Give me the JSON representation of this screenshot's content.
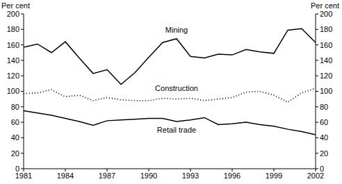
{
  "chart_data": {
    "type": "line",
    "y_label": "Per cent",
    "y2_label": "Per cent",
    "x": [
      1981,
      1982,
      1983,
      1984,
      1985,
      1986,
      1987,
      1988,
      1989,
      1990,
      1991,
      1992,
      1993,
      1994,
      1995,
      1996,
      1997,
      1998,
      1999,
      2000,
      2001,
      2002
    ],
    "series": [
      {
        "name": "Mining",
        "color": "#000000",
        "line_style": "solid",
        "values": [
          157,
          161,
          150,
          164,
          143,
          123,
          128,
          109,
          124,
          144,
          163,
          168,
          145,
          143,
          148,
          147,
          154,
          151,
          149,
          179,
          181,
          163
        ]
      },
      {
        "name": "Construction",
        "color": "#000000",
        "line_style": "dotted",
        "values": [
          97,
          98,
          102,
          93,
          95,
          88,
          92,
          89,
          88,
          88,
          91,
          90,
          91,
          88,
          90,
          92,
          99,
          100,
          95,
          86,
          98,
          104
        ]
      },
      {
        "name": "Retail trade",
        "color": "#000000",
        "line_style": "solid",
        "values": [
          75,
          72,
          69,
          65,
          61,
          56,
          62,
          63,
          64,
          65,
          65,
          61,
          63,
          66,
          57,
          58,
          60,
          57,
          55,
          51,
          48,
          44
        ]
      }
    ],
    "xlim": [
      1981,
      2002
    ],
    "xticks": [
      1981,
      1984,
      1987,
      1990,
      1993,
      1996,
      1999,
      2002
    ],
    "ylim": [
      0,
      200
    ],
    "yticks": [
      0,
      20,
      40,
      60,
      80,
      100,
      120,
      140,
      160,
      180,
      200
    ],
    "y2lim": [
      0,
      200
    ],
    "y2ticks": [
      0,
      20,
      40,
      60,
      80,
      100,
      120,
      140,
      160,
      180,
      200
    ],
    "grid": false
  }
}
